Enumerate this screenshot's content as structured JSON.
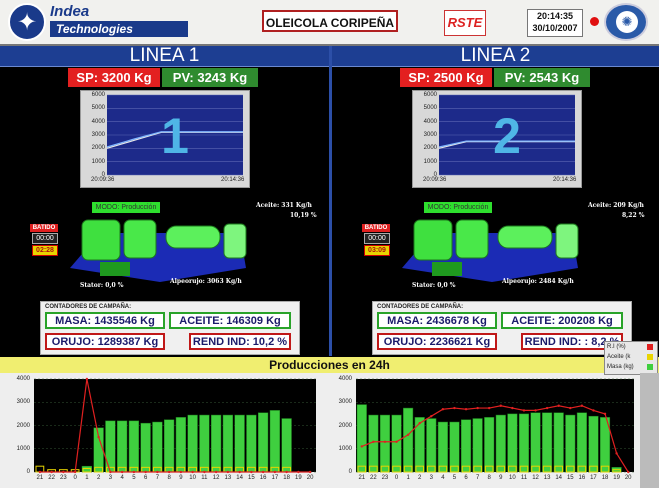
{
  "header": {
    "company_top": "Indea",
    "company_bottom": "Technologies",
    "site_name": "OLEICOLA CORIPEÑA",
    "brand2": "RSTE",
    "time": "20:14:35",
    "date": "30/10/2007",
    "alarm_color": "#e01010"
  },
  "lines": [
    {
      "title": "LINEA  1",
      "sp": "SP:  3200 Kg",
      "pv": "PV:  3243 Kg",
      "number": "1",
      "y_ticks": [
        "6000",
        "5000",
        "4000",
        "3000",
        "2000",
        "1000",
        "0"
      ],
      "t_start": "20:09:36",
      "t_end": "20:14:36",
      "trend": {
        "sp": [
          [
            0,
            2000
          ],
          [
            0.2,
            2600
          ],
          [
            0.4,
            3200
          ],
          [
            1,
            3200
          ]
        ],
        "pv": [
          [
            0,
            2100
          ],
          [
            0.2,
            2700
          ],
          [
            0.4,
            3243
          ],
          [
            1,
            3243
          ]
        ]
      },
      "batido_label": "BATIDO",
      "batido_1": "00:00",
      "batido_2": "02:28",
      "modo": "MODO: Producción",
      "aceite": "Aceite: 331 Kg/h",
      "aceite_pct": "10,19 %",
      "stator": "Stator: 0,0 %",
      "alpeorujo": "Alpeorujo: 3063 Kg/h",
      "contadores_title": "CONTADORES DE CAMPAÑA:",
      "masa": "MASA:  1435546 Kg",
      "aceite_total": "ACEITE:     146309 Kg",
      "orujo": "ORUJO: 1289387 Kg",
      "rend": "REND IND:  10,2 %"
    },
    {
      "title": "LINEA  2",
      "sp": "SP:  2500 Kg",
      "pv": "PV:  2543 Kg",
      "number": "2",
      "y_ticks": [
        "6000",
        "5000",
        "4000",
        "3000",
        "2000",
        "1000",
        "0"
      ],
      "t_start": "20:09:36",
      "t_end": "20:14:36",
      "trend": {
        "sp": [
          [
            0,
            2000
          ],
          [
            0.2,
            2500
          ],
          [
            1,
            2500
          ]
        ],
        "pv": [
          [
            0,
            2100
          ],
          [
            0.2,
            2543
          ],
          [
            1,
            2543
          ]
        ]
      },
      "batido_label": "BATIDO",
      "batido_1": "00:00",
      "batido_2": "03:09",
      "modo": "MODO: Producción",
      "aceite": "Aceite: 209 Kg/h",
      "aceite_pct": "8,22 %",
      "stator": "Stator: 0,0 %",
      "alpeorujo": "Alpeorujo: 2484 Kg/h",
      "contadores_title": "CONTADORES DE CAMPAÑA:",
      "masa": "MASA:  2436678 Kg",
      "aceite_total": "ACEITE:     200208 Kg",
      "orujo": "ORUJO: 2236621 Kg",
      "rend": "REND IND:  : 8,2 %"
    }
  ],
  "producciones": {
    "title": "Producciones en 24h",
    "legend": [
      "R.I (%)",
      "Aceite (k",
      "Masa (kg)"
    ],
    "legend_colors": [
      "#e02020",
      "#e8d400",
      "#3fcf3f"
    ],
    "y_ticks": [
      "4000",
      "3000",
      "2000",
      "1000",
      "0"
    ]
  },
  "chart_data": [
    {
      "type": "bar",
      "categories": [
        "21",
        "22",
        "23",
        "0",
        "1",
        "2",
        "3",
        "4",
        "5",
        "6",
        "7",
        "8",
        "9",
        "10",
        "11",
        "12",
        "13",
        "14",
        "15",
        "16",
        "17",
        "18",
        "19",
        "20"
      ],
      "series": [
        {
          "name": "Masa (kg)",
          "values": [
            0,
            0,
            0,
            0,
            250,
            1900,
            2200,
            2200,
            2200,
            2100,
            2150,
            2250,
            2350,
            2450,
            2450,
            2450,
            2450,
            2450,
            2450,
            2550,
            2650,
            2300,
            0,
            0
          ]
        },
        {
          "name": "Aceite (k",
          "values": [
            250,
            100,
            100,
            100,
            150,
            200,
            200,
            200,
            200,
            200,
            200,
            200,
            200,
            200,
            200,
            200,
            200,
            200,
            200,
            200,
            200,
            200,
            0,
            0
          ]
        },
        {
          "name": "R.I (%)",
          "values": [
            0,
            0,
            0,
            0,
            4000,
            1500,
            0,
            0,
            0,
            0,
            0,
            0,
            0,
            0,
            0,
            0,
            0,
            0,
            0,
            0,
            0,
            0,
            0,
            0
          ]
        }
      ],
      "ylim": [
        0,
        4000
      ]
    },
    {
      "type": "bar",
      "categories": [
        "21",
        "22",
        "23",
        "0",
        "1",
        "2",
        "3",
        "4",
        "5",
        "6",
        "7",
        "8",
        "9",
        "10",
        "11",
        "12",
        "13",
        "14",
        "15",
        "16",
        "17",
        "18",
        "19",
        "20"
      ],
      "series": [
        {
          "name": "Masa (kg)",
          "values": [
            2900,
            2450,
            2450,
            2450,
            2750,
            2350,
            2300,
            2150,
            2150,
            2250,
            2300,
            2350,
            2450,
            2500,
            2500,
            2550,
            2550,
            2550,
            2450,
            2550,
            2400,
            2350,
            200,
            0
          ]
        },
        {
          "name": "Aceite (k",
          "values": [
            250,
            250,
            250,
            250,
            250,
            250,
            250,
            250,
            250,
            250,
            250,
            250,
            250,
            250,
            250,
            250,
            250,
            250,
            250,
            250,
            250,
            250,
            100,
            0
          ]
        },
        {
          "name": "R.I (%)",
          "values": [
            1100,
            1300,
            1300,
            1300,
            1600,
            2100,
            2400,
            2700,
            2750,
            2700,
            2750,
            2750,
            2850,
            2750,
            2650,
            2650,
            2750,
            2850,
            2750,
            2850,
            2650,
            2500,
            800,
            0
          ]
        }
      ],
      "ylim": [
        0,
        4000
      ]
    }
  ]
}
